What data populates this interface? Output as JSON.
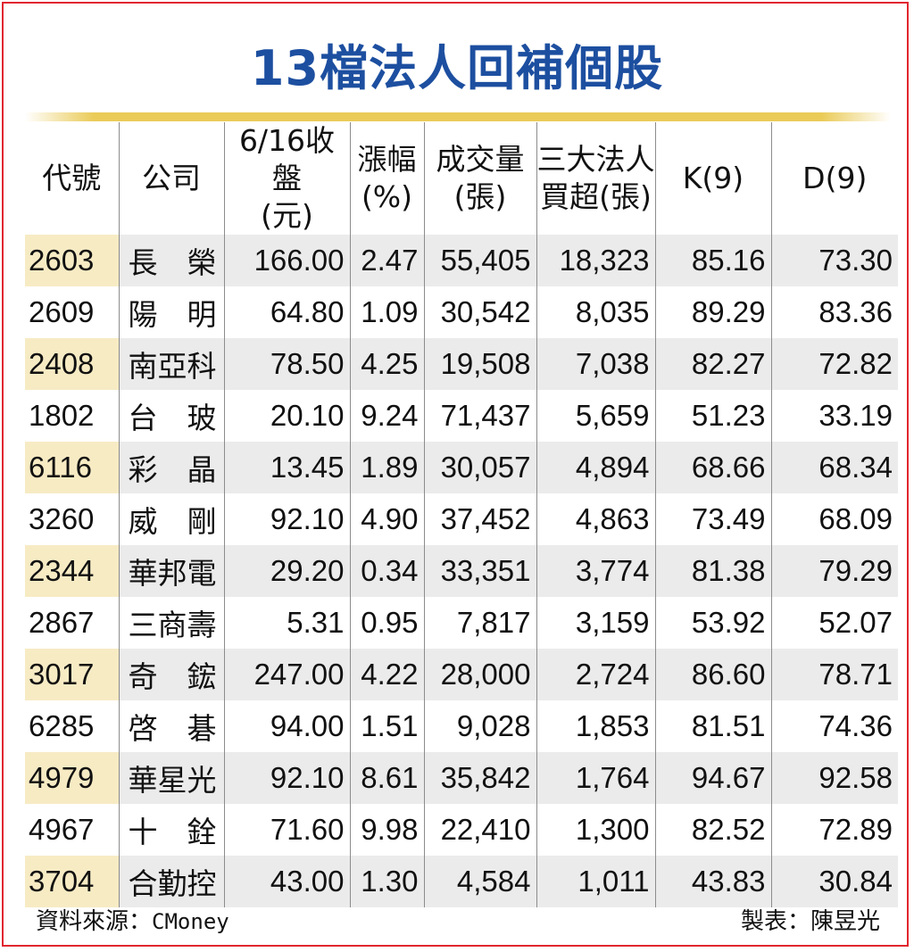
{
  "title": "13檔法人回補個股",
  "headers": {
    "code": "代號",
    "company": "公司",
    "close_line1": "6/16收盤",
    "close_line2": "(元)",
    "change_line1": "漲幅",
    "change_line2": "(%)",
    "volume_line1": "成交量",
    "volume_line2": "(張)",
    "net_buy_line1": "三大法人",
    "net_buy_line2": "買超(張)",
    "k9": "K(9)",
    "d9": "D(9)"
  },
  "rows": [
    {
      "code": "2603",
      "company": "長　榮",
      "close": "166.00",
      "change": "2.47",
      "volume": "55,405",
      "net_buy": "18,323",
      "k9": "85.16",
      "d9": "73.30"
    },
    {
      "code": "2609",
      "company": "陽　明",
      "close": "64.80",
      "change": "1.09",
      "volume": "30,542",
      "net_buy": "8,035",
      "k9": "89.29",
      "d9": "83.36"
    },
    {
      "code": "2408",
      "company": "南亞科",
      "close": "78.50",
      "change": "4.25",
      "volume": "19,508",
      "net_buy": "7,038",
      "k9": "82.27",
      "d9": "72.82"
    },
    {
      "code": "1802",
      "company": "台　玻",
      "close": "20.10",
      "change": "9.24",
      "volume": "71,437",
      "net_buy": "5,659",
      "k9": "51.23",
      "d9": "33.19"
    },
    {
      "code": "6116",
      "company": "彩　晶",
      "close": "13.45",
      "change": "1.89",
      "volume": "30,057",
      "net_buy": "4,894",
      "k9": "68.66",
      "d9": "68.34"
    },
    {
      "code": "3260",
      "company": "威　剛",
      "close": "92.10",
      "change": "4.90",
      "volume": "37,452",
      "net_buy": "4,863",
      "k9": "73.49",
      "d9": "68.09"
    },
    {
      "code": "2344",
      "company": "華邦電",
      "close": "29.20",
      "change": "0.34",
      "volume": "33,351",
      "net_buy": "3,774",
      "k9": "81.38",
      "d9": "79.29"
    },
    {
      "code": "2867",
      "company": "三商壽",
      "close": "5.31",
      "change": "0.95",
      "volume": "7,817",
      "net_buy": "3,159",
      "k9": "53.92",
      "d9": "52.07"
    },
    {
      "code": "3017",
      "company": "奇　鋐",
      "close": "247.00",
      "change": "4.22",
      "volume": "28,000",
      "net_buy": "2,724",
      "k9": "86.60",
      "d9": "78.71"
    },
    {
      "code": "6285",
      "company": "啓　碁",
      "close": "94.00",
      "change": "1.51",
      "volume": "9,028",
      "net_buy": "1,853",
      "k9": "81.51",
      "d9": "74.36"
    },
    {
      "code": "4979",
      "company": "華星光",
      "close": "92.10",
      "change": "8.61",
      "volume": "35,842",
      "net_buy": "1,764",
      "k9": "94.67",
      "d9": "92.58"
    },
    {
      "code": "4967",
      "company": "十　銓",
      "close": "71.60",
      "change": "9.98",
      "volume": "22,410",
      "net_buy": "1,300",
      "k9": "82.52",
      "d9": "72.89"
    },
    {
      "code": "3704",
      "company": "合勤控",
      "close": "43.00",
      "change": "1.30",
      "volume": "4,584",
      "net_buy": "1,011",
      "k9": "43.83",
      "d9": "30.84"
    }
  ],
  "footer": {
    "source_label": "資料來源：",
    "source_name": "CMoney",
    "maker": "製表：陳昱光"
  },
  "colors": {
    "title": "#1d4fa0",
    "frame": "#e0262f",
    "gold_rule": "#eacb58",
    "row_shade": "#ebebeb",
    "code_shade": "#f7ebc4"
  }
}
